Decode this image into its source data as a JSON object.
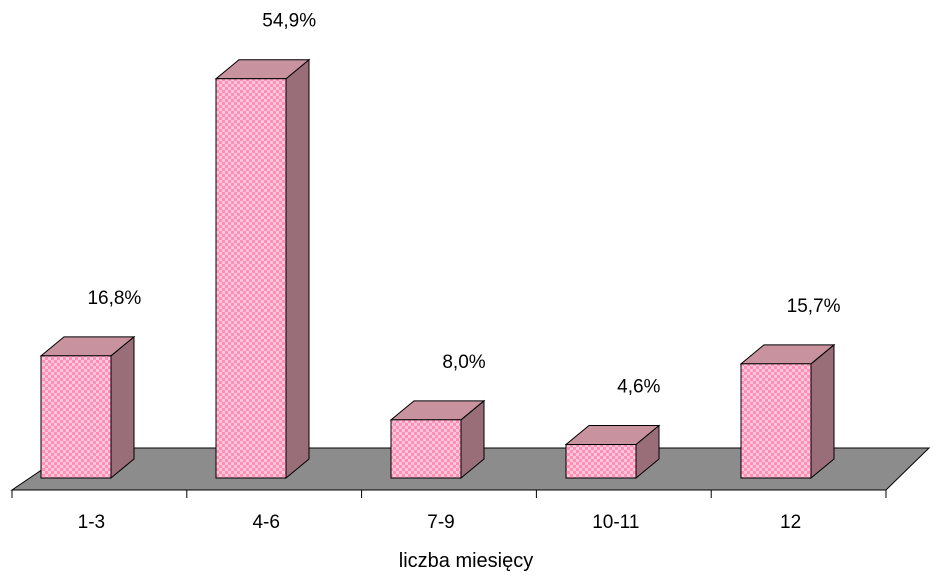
{
  "chart_data": {
    "type": "bar",
    "title": "",
    "xlabel": "liczba miesięcy",
    "ylabel": "",
    "categories": [
      "1-3",
      "4-6",
      "7-9",
      "10-11",
      "12"
    ],
    "values": [
      16.8,
      54.9,
      8.0,
      4.6,
      15.7
    ],
    "value_labels": [
      "16,8%",
      "54,9%",
      "8,0%",
      "4,6%",
      "15,7%"
    ],
    "ylim": [
      0,
      55
    ],
    "grid": false,
    "legend": "none",
    "three_d": true
  },
  "colors": {
    "bar_front": "#ffc6da",
    "bar_front_dots": "#ff8fb6",
    "bar_top": "#c9929f",
    "bar_side": "#9a6e79",
    "floor": "#8c8c8c",
    "outline": "#000000"
  }
}
